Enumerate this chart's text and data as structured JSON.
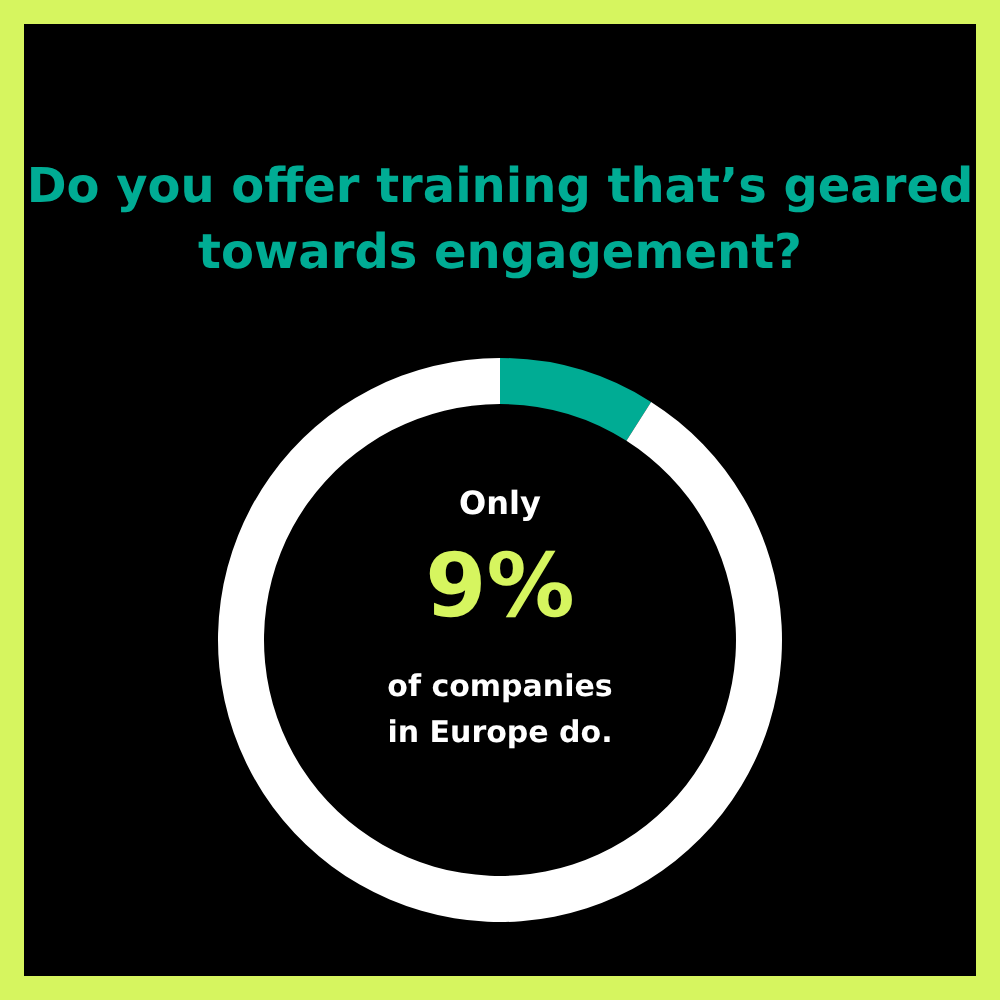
{
  "chart_data": {
    "type": "donut",
    "title": "Do you offer training that’s geared towards engagement?",
    "categories": [
      null,
      null
    ],
    "values": [
      9,
      91
    ],
    "colors": [
      "#00ac94",
      "#ffffff"
    ],
    "annotations": [
      "Only",
      "9%",
      "of companies",
      "in Europe do."
    ],
    "legend": false
  }
}
